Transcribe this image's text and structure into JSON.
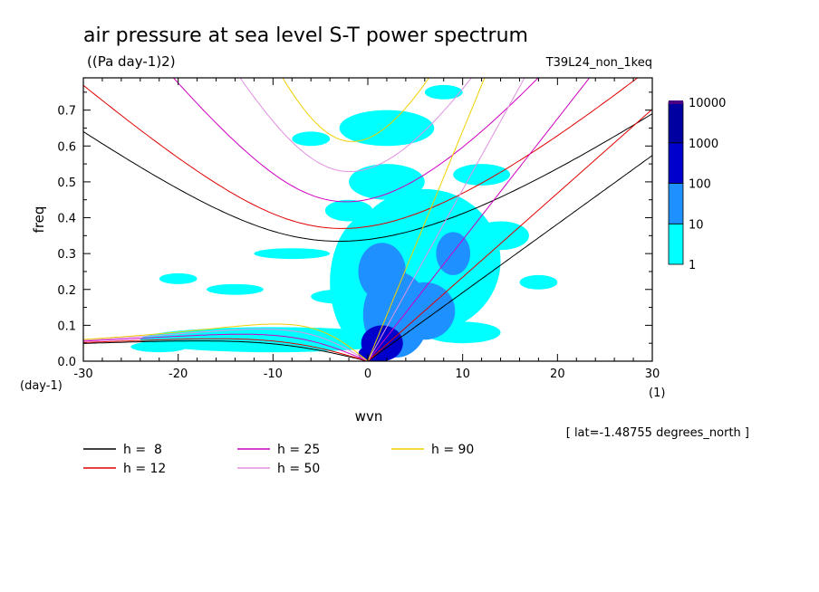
{
  "chart_data": {
    "type": "heatmap",
    "title": "air pressure at sea level S-T power spectrum",
    "units": "((Pa day-1)2)",
    "run_label": "T39L24_non_1keq",
    "xlabel": "wvn",
    "ylabel": "freq",
    "x_unit": "(1)",
    "y_unit": "(day-1)",
    "xlim": [
      -30,
      30
    ],
    "ylim": [
      0,
      0.79
    ],
    "x_ticks": [
      -30,
      -20,
      -10,
      0,
      10,
      20,
      30
    ],
    "x_tick_labels": [
      "-30",
      "-20",
      "-10",
      "0",
      "10",
      "20",
      "30"
    ],
    "y_ticks": [
      0,
      0.1,
      0.2,
      0.3,
      0.4,
      0.5,
      0.6,
      0.7
    ],
    "y_tick_labels": [
      "0.0",
      "0.1",
      "0.2",
      "0.3",
      "0.4",
      "0.5",
      "0.6",
      "0.7"
    ],
    "note": "[ lat=-1.48755 degrees_north ]",
    "colorbar": {
      "levels": [
        "1",
        "10",
        "100",
        "1000",
        "10000"
      ],
      "colors": [
        "#00ffff",
        "#1e90ff",
        "#0000cd",
        "#0000a0"
      ],
      "cap_color": "#4b0082"
    },
    "power_regions": [
      {
        "x": 1.5,
        "y": 0.05,
        "rx": 2.2,
        "ry": 0.05,
        "level": 3
      },
      {
        "x": 0.5,
        "y": 0.02,
        "rx": 1.5,
        "ry": 0.025,
        "level": 3
      },
      {
        "x": 3,
        "y": 0.13,
        "rx": 3.5,
        "ry": 0.12,
        "level": 2
      },
      {
        "x": 6,
        "y": 0.14,
        "rx": 3.2,
        "ry": 0.08,
        "level": 2
      },
      {
        "x": 1.5,
        "y": 0.25,
        "rx": 2.5,
        "ry": 0.08,
        "level": 2
      },
      {
        "x": 9,
        "y": 0.3,
        "rx": 1.8,
        "ry": 0.06,
        "level": 2
      },
      {
        "x": 1,
        "y": 0.22,
        "rx": 5,
        "ry": 0.2,
        "level": 1
      },
      {
        "x": 6,
        "y": 0.28,
        "rx": 8,
        "ry": 0.2,
        "level": 1
      },
      {
        "x": -10,
        "y": 0.06,
        "rx": 14,
        "ry": 0.035,
        "level": 1
      },
      {
        "x": -8,
        "y": 0.3,
        "rx": 4,
        "ry": 0.015,
        "level": 1
      },
      {
        "x": -3,
        "y": 0.18,
        "rx": 3,
        "ry": 0.02,
        "level": 1
      },
      {
        "x": 2,
        "y": 0.5,
        "rx": 4,
        "ry": 0.05,
        "level": 1
      },
      {
        "x": 2,
        "y": 0.65,
        "rx": 5,
        "ry": 0.05,
        "level": 1
      },
      {
        "x": 12,
        "y": 0.52,
        "rx": 3,
        "ry": 0.03,
        "level": 1
      },
      {
        "x": 14,
        "y": 0.35,
        "rx": 3,
        "ry": 0.04,
        "level": 1
      },
      {
        "x": -14,
        "y": 0.2,
        "rx": 3,
        "ry": 0.015,
        "level": 1
      },
      {
        "x": -20,
        "y": 0.23,
        "rx": 2,
        "ry": 0.015,
        "level": 1
      },
      {
        "x": 18,
        "y": 0.22,
        "rx": 2,
        "ry": 0.02,
        "level": 1
      },
      {
        "x": -6,
        "y": 0.62,
        "rx": 2,
        "ry": 0.02,
        "level": 1
      },
      {
        "x": -2,
        "y": 0.42,
        "rx": 2.5,
        "ry": 0.03,
        "level": 1
      },
      {
        "x": 10,
        "y": 0.08,
        "rx": 4,
        "ry": 0.03,
        "level": 1
      },
      {
        "x": -22,
        "y": 0.04,
        "rx": 3,
        "ry": 0.015,
        "level": 1
      },
      {
        "x": 8,
        "y": 0.75,
        "rx": 2,
        "ry": 0.02,
        "level": 1
      }
    ],
    "series": [
      {
        "name": "h =  8",
        "h": 8,
        "color": "#000000"
      },
      {
        "name": "h = 12",
        "h": 12,
        "color": "#e00000"
      },
      {
        "name": "h = 25",
        "h": 25,
        "color": "#d000c0"
      },
      {
        "name": "h = 50",
        "h": 50,
        "color": "#e090e0"
      },
      {
        "name": "h = 90",
        "h": 90,
        "color": "#f0d000"
      }
    ]
  }
}
